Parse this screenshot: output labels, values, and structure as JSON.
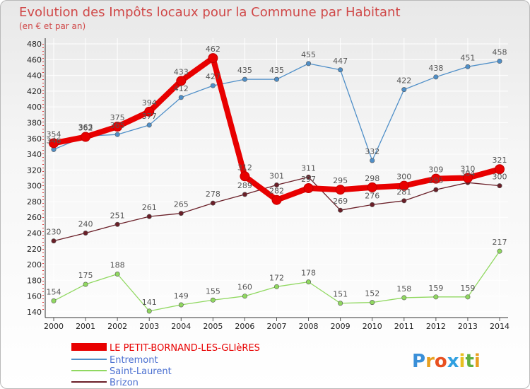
{
  "chart_data": {
    "type": "line",
    "title": "Evolution des Impôts locaux pour la Commune par Habitant",
    "subtitle": "(en € et par an)",
    "x": [
      "2000",
      "2001",
      "2002",
      "2003",
      "2004",
      "2005",
      "2006",
      "2007",
      "2008",
      "2009",
      "2010",
      "2011",
      "2012",
      "2013",
      "2014"
    ],
    "ylim": [
      140,
      480
    ],
    "yticks": [
      140,
      160,
      180,
      200,
      220,
      240,
      260,
      280,
      300,
      320,
      340,
      360,
      380,
      400,
      420,
      440,
      460,
      480
    ],
    "grid": true,
    "series": [
      {
        "name": "LE PETIT-BORNAND-LES-GLIèRES",
        "color": "#e80000",
        "values": [
          354,
          362,
          375,
          394,
          433,
          462,
          312,
          282,
          297,
          295,
          298,
          300,
          309,
          310,
          321
        ]
      },
      {
        "name": "Entremont",
        "color": "#4f8fc8",
        "values": [
          346,
          363,
          365,
          377,
          412,
          427,
          435,
          435,
          455,
          447,
          332,
          422,
          438,
          451,
          458
        ]
      },
      {
        "name": "Saint-Laurent",
        "color": "#90d860",
        "values": [
          154,
          175,
          188,
          141,
          149,
          155,
          160,
          172,
          178,
          151,
          152,
          158,
          159,
          159,
          217
        ]
      },
      {
        "name": "Brizon",
        "color": "#6a1f28",
        "values": [
          230,
          240,
          251,
          261,
          265,
          278,
          289,
          301,
          311,
          269,
          276,
          281,
          295,
          304,
          300
        ]
      }
    ]
  },
  "logo": {
    "text": "Proxiti",
    "letters": [
      "P",
      "r",
      "o",
      "x",
      "i",
      "t",
      "i"
    ]
  }
}
